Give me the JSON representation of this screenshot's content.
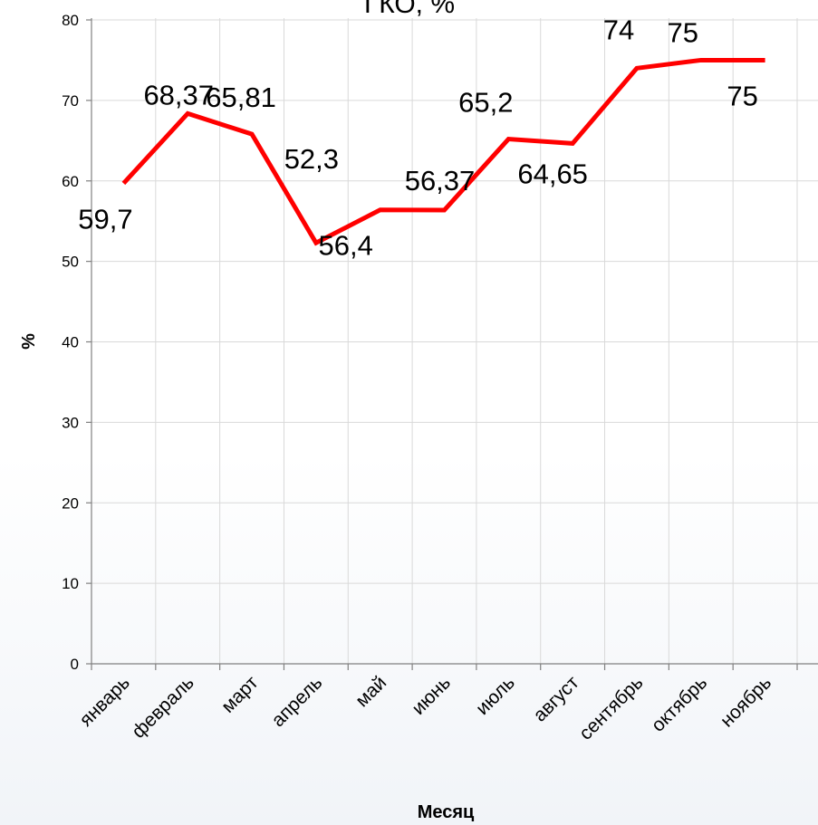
{
  "chart_data": {
    "type": "line",
    "title": "ГКО, %",
    "xlabel": "Месяц",
    "ylabel": "%",
    "ylim": [
      0,
      80
    ],
    "yticks": [
      0,
      10,
      20,
      30,
      40,
      50,
      60,
      70,
      80
    ],
    "grid": true,
    "legend": "none",
    "categories": [
      "январь",
      "февраль",
      "март",
      "апрель",
      "май",
      "июнь",
      "июль",
      "август",
      "сентябрь",
      "октябрь",
      "ноябрь"
    ],
    "series": [
      {
        "color": "#ff0000",
        "values": [
          59.7,
          68.37,
          65.81,
          52.3,
          56.4,
          56.37,
          65.2,
          64.65,
          74,
          75,
          75
        ],
        "labels": [
          "59,7",
          "68,37",
          "65,81",
          "52,3",
          "56,4",
          "56,37",
          "65,2",
          "64,65",
          "74",
          "75",
          "75"
        ]
      }
    ]
  }
}
